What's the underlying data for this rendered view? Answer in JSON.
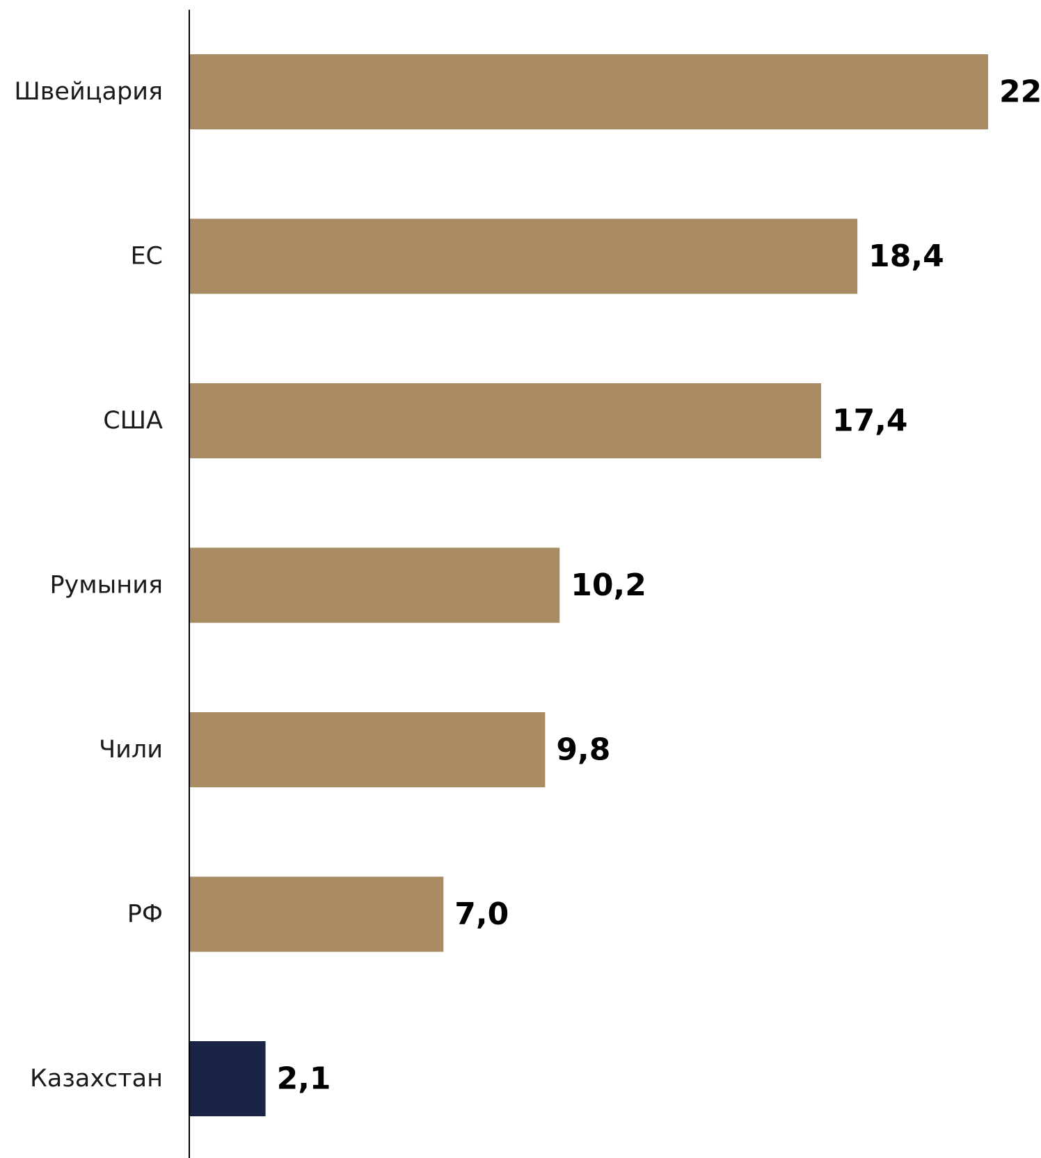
{
  "chart_data": {
    "type": "bar",
    "orientation": "horizontal",
    "categories": [
      "Швейцария",
      "ЕС",
      "США",
      "Румыния",
      "Чили",
      "РФ",
      "Казахстан"
    ],
    "values": [
      22,
      18.4,
      17.4,
      10.2,
      9.8,
      7.0,
      2.1
    ],
    "value_labels": [
      "22",
      "18,4",
      "17,4",
      "10,2",
      "9,8",
      "7,0",
      "2,1"
    ],
    "highlight_category": "Казахстан",
    "title": "",
    "xlabel": "",
    "ylabel": "",
    "xlim": [
      0,
      22
    ],
    "grid": false,
    "colors": {
      "bar": "#A88B62",
      "highlight": "#1A2545",
      "axis": "#000000"
    }
  }
}
